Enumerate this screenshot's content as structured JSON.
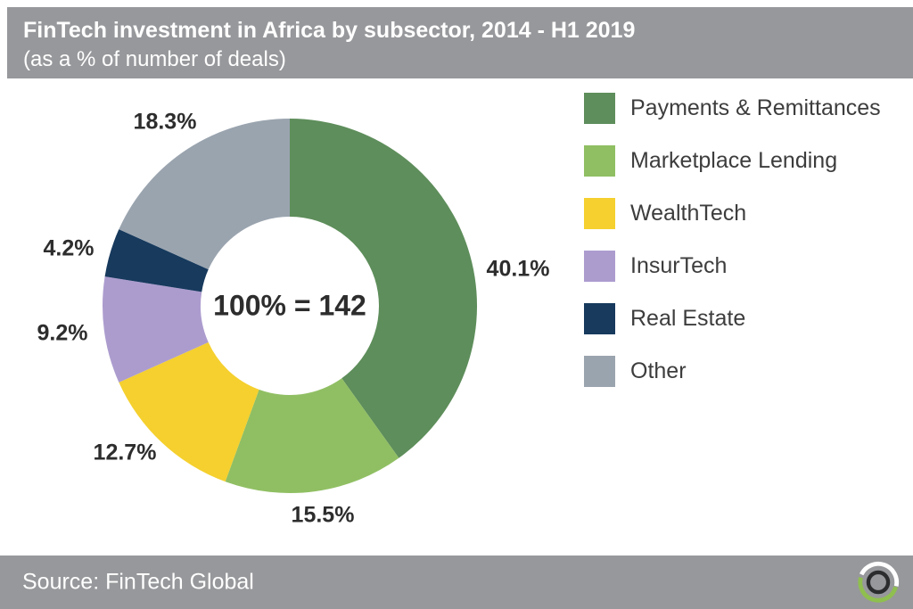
{
  "header": {
    "title": "FinTech investment in Africa by subsector, 2014 - H1 2019",
    "subtitle": "(as a % of number of deals)"
  },
  "chart_data": {
    "type": "pie",
    "subtype": "donut",
    "title": "FinTech investment in Africa by subsector, 2014 - H1 2019",
    "subtitle": "(as a % of number of deals)",
    "center_label": "100% = 142",
    "total_deals": 142,
    "start_angle_deg": -90,
    "direction": "clockwise",
    "legend_position": "right",
    "slices": [
      {
        "label": "Payments & Remittances",
        "value": 40.1,
        "pct_label": "40.1%",
        "color": "#5E8E5B"
      },
      {
        "label": "Marketplace Lending",
        "value": 15.5,
        "pct_label": "15.5%",
        "color": "#90BF63"
      },
      {
        "label": "WealthTech",
        "value": 12.7,
        "pct_label": "12.7%",
        "color": "#F5D02E"
      },
      {
        "label": "InsurTech",
        "value": 9.2,
        "pct_label": "9.2%",
        "color": "#AC9CCE"
      },
      {
        "label": "Real Estate",
        "value": 4.2,
        "pct_label": "4.2%",
        "color": "#173A5D"
      },
      {
        "label": "Other",
        "value": 18.3,
        "pct_label": "18.3%",
        "color": "#9AA4AF"
      }
    ]
  },
  "footer": {
    "source": "Source: FinTech Global"
  },
  "theme": {
    "band_gray": "#97989B",
    "label_text": "#2D2D2D",
    "legend_text": "#3D3D3D",
    "background": "#FFFFFF",
    "logo_green": "#8FBF4F",
    "logo_dark": "#2A2C2E"
  }
}
